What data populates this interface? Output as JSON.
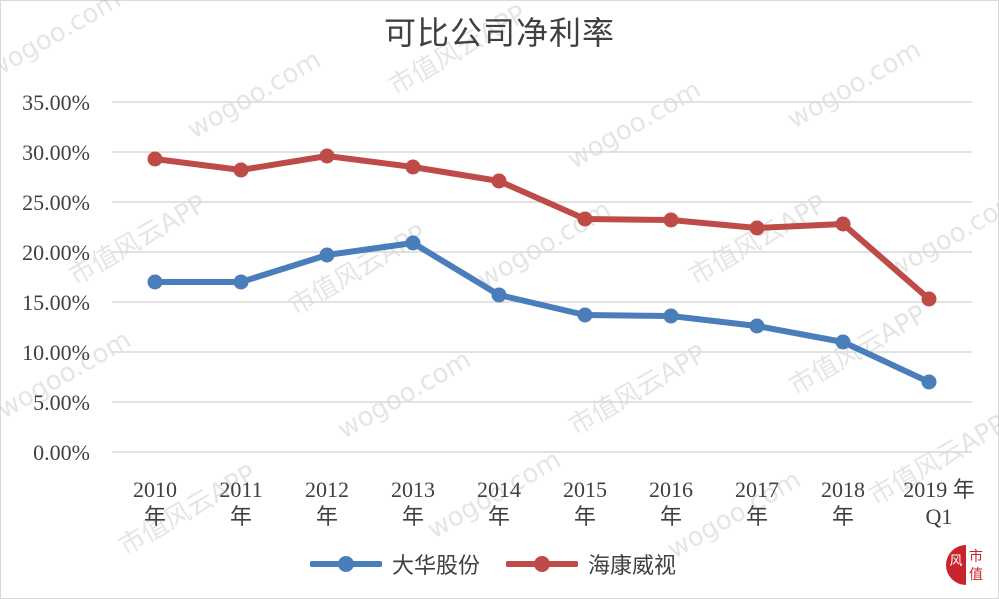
{
  "chart_data": {
    "type": "line",
    "title": "可比公司净利率",
    "xlabel": "",
    "ylabel": "",
    "categories": [
      "2010年",
      "2011年",
      "2012年",
      "2013年",
      "2014年",
      "2015年",
      "2016年",
      "2017年",
      "2018年",
      "2019年Q1"
    ],
    "series": [
      {
        "name": "大华股份",
        "color": "#4a7ebb",
        "values": [
          17.0,
          17.0,
          19.7,
          20.9,
          15.7,
          13.7,
          13.6,
          12.6,
          11.0,
          7.0
        ]
      },
      {
        "name": "海康威视",
        "color": "#be4b48",
        "values": [
          29.3,
          28.2,
          29.6,
          28.5,
          27.1,
          23.3,
          23.2,
          22.4,
          22.8,
          15.3
        ]
      }
    ],
    "ylim": [
      0,
      35
    ],
    "yticks": [
      "0.00%",
      "5.00%",
      "10.00%",
      "15.00%",
      "20.00%",
      "25.00%",
      "30.00%",
      "35.00%"
    ],
    "grid": true,
    "legend_position": "bottom"
  },
  "title": "可比公司净利率",
  "yaxis": {
    "ticks": [
      "35.00%",
      "30.00%",
      "25.00%",
      "20.00%",
      "15.00%",
      "10.00%",
      "5.00%",
      "0.00%"
    ]
  },
  "xaxis": {
    "ticks": [
      {
        "line1": "2010",
        "line2": "年"
      },
      {
        "line1": "2011",
        "line2": "年"
      },
      {
        "line1": "2012",
        "line2": "年"
      },
      {
        "line1": "2013",
        "line2": "年"
      },
      {
        "line1": "2014",
        "line2": "年"
      },
      {
        "line1": "2015",
        "line2": "年"
      },
      {
        "line1": "2016",
        "line2": "年"
      },
      {
        "line1": "2017",
        "line2": "年"
      },
      {
        "line1": "2018",
        "line2": "年"
      },
      {
        "line1": "2019 年",
        "line2": "Q1"
      }
    ]
  },
  "legend": {
    "items": [
      {
        "label": "大华股份",
        "color": "#4a7ebb"
      },
      {
        "label": "海康威视",
        "color": "#be4b48"
      }
    ]
  },
  "watermark": {
    "text1": "wogoo.com",
    "text2": "市值风云APP"
  },
  "logo": {
    "char1": "风",
    "char2": "市",
    "char3": "值",
    "color": "#c8242c"
  }
}
